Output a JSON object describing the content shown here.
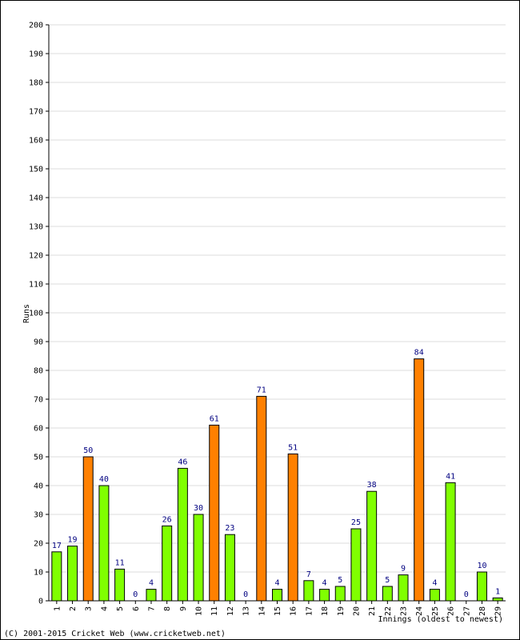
{
  "chart_data": {
    "type": "bar",
    "title": "",
    "ylabel": "Runs",
    "xlabel": "Innings (oldest to newest)",
    "ylim": [
      0,
      200
    ],
    "ytick_step": 10,
    "grid": true,
    "categories": [
      "1",
      "2",
      "3",
      "4",
      "5",
      "6",
      "7",
      "8",
      "9",
      "10",
      "11",
      "12",
      "13",
      "14",
      "15",
      "16",
      "17",
      "18",
      "19",
      "20",
      "21",
      "22",
      "23",
      "24",
      "25",
      "26",
      "27",
      "28",
      "29"
    ],
    "values": [
      17,
      19,
      50,
      40,
      11,
      0,
      4,
      26,
      46,
      30,
      61,
      23,
      0,
      71,
      4,
      51,
      7,
      4,
      5,
      25,
      38,
      5,
      9,
      84,
      4,
      41,
      0,
      10,
      1
    ],
    "highlight_threshold": 50,
    "colors": {
      "bar_normal": "#80ff00",
      "bar_highlight": "#ff8000",
      "bar_stroke": "#000000",
      "data_label": "#000080",
      "grid": "#dddddd",
      "axis": "#000000"
    }
  },
  "footer": {
    "copyright": "(C) 2001-2015 Cricket Web (www.cricketweb.net)"
  }
}
